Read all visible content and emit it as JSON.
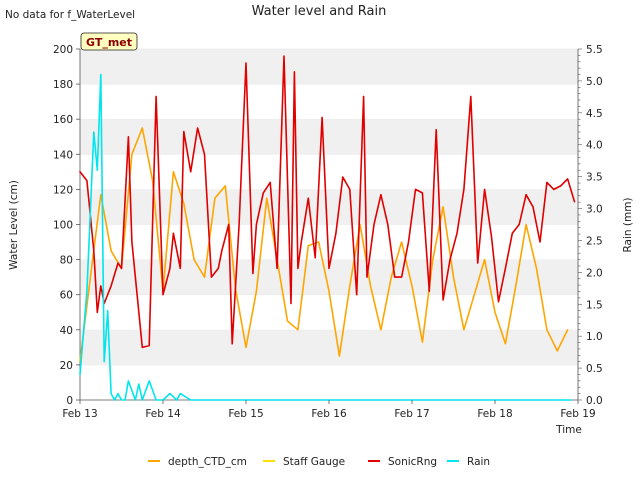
{
  "page": {
    "corner_note": "No data for f_WaterLevel",
    "tag_label": "GT_met"
  },
  "chart_data": {
    "type": "line",
    "title": "Water level and Rain",
    "xlabel": "Time",
    "ylabel": "Water Level (cm)",
    "y2label": "Rain (mm)",
    "x_ticks": [
      "Feb 13",
      "Feb 14",
      "Feb 15",
      "Feb 16",
      "Feb 17",
      "Feb 18",
      "Feb 19"
    ],
    "ylim": [
      0,
      200
    ],
    "y_ticks": [
      0,
      20,
      40,
      60,
      80,
      100,
      120,
      140,
      160,
      180,
      200
    ],
    "y2lim": [
      0,
      5.5
    ],
    "y2_ticks": [
      "0.0",
      "0.5",
      "1.0",
      "1.5",
      "2.0",
      "2.5",
      "3.0",
      "3.5",
      "4.0",
      "4.5",
      "5.0",
      "5.5"
    ],
    "grid": "horizontal bands",
    "legend_position": "bottom",
    "series": [
      {
        "name": "depth_CTD_cm",
        "color": "#FFA500",
        "axis": "left",
        "x": [
          "02-13 00:00",
          "02-13 03:00",
          "02-13 06:00",
          "02-13 09:00",
          "02-13 12:00",
          "02-13 15:00",
          "02-13 18:00",
          "02-13 21:00",
          "02-14 00:00",
          "02-14 03:00",
          "02-14 06:00",
          "02-14 09:00",
          "02-14 12:00",
          "02-14 15:00",
          "02-14 18:00",
          "02-14 21:00",
          "02-15 00:00",
          "02-15 03:00",
          "02-15 06:00",
          "02-15 09:00",
          "02-15 12:00",
          "02-15 15:00",
          "02-15 18:00",
          "02-15 21:00",
          "02-16 00:00",
          "02-16 03:00",
          "02-16 06:00",
          "02-16 09:00",
          "02-16 12:00",
          "02-16 15:00",
          "02-16 18:00",
          "02-16 21:00",
          "02-17 00:00",
          "02-17 03:00",
          "02-17 06:00",
          "02-17 09:00",
          "02-17 12:00",
          "02-17 15:00",
          "02-17 18:00",
          "02-17 21:00",
          "02-18 00:00",
          "02-18 03:00",
          "02-18 06:00",
          "02-18 09:00",
          "02-18 12:00",
          "02-18 15:00",
          "02-18 18:00",
          "02-18 21:00"
        ],
        "values": [
          22,
          70,
          117,
          85,
          75,
          140,
          155,
          125,
          62,
          130,
          112,
          80,
          70,
          115,
          122,
          63,
          30,
          62,
          115,
          80,
          45,
          40,
          88,
          90,
          62,
          25,
          65,
          100,
          65,
          40,
          70,
          90,
          65,
          33,
          80,
          110,
          70,
          40,
          60,
          80,
          50,
          32,
          65,
          100,
          75,
          40,
          28,
          40
        ]
      },
      {
        "name": "Staff Gauge",
        "color": "#FFE000",
        "axis": "left",
        "x": [],
        "values": []
      },
      {
        "name": "SonicRng",
        "color": "#E00000",
        "axis": "left",
        "x": [
          "02-13 00:00",
          "02-13 02:00",
          "02-13 04:00",
          "02-13 05:00",
          "02-13 06:00",
          "02-13 07:00",
          "02-13 09:00",
          "02-13 11:00",
          "02-13 12:00",
          "02-13 14:00",
          "02-13 15:00",
          "02-13 18:00",
          "02-13 20:00",
          "02-13 22:00",
          "02-14 00:00",
          "02-14 02:00",
          "02-14 03:00",
          "02-14 05:00",
          "02-14 06:00",
          "02-14 08:00",
          "02-14 10:00",
          "02-14 12:00",
          "02-14 14:00",
          "02-14 16:00",
          "02-14 17:00",
          "02-14 19:00",
          "02-14 20:00",
          "02-14 22:00",
          "02-15 00:00",
          "02-15 02:00",
          "02-15 03:00",
          "02-15 05:00",
          "02-15 07:00",
          "02-15 09:00",
          "02-15 11:00",
          "02-15 13:00",
          "02-15 14:00",
          "02-15 15:00",
          "02-15 16:00",
          "02-15 18:00",
          "02-15 20:00",
          "02-15 22:00",
          "02-16 00:00",
          "02-16 02:00",
          "02-16 04:00",
          "02-16 06:00",
          "02-16 08:00",
          "02-16 10:00",
          "02-16 11:00",
          "02-16 13:00",
          "02-16 15:00",
          "02-16 17:00",
          "02-16 19:00",
          "02-16 21:00",
          "02-16 23:00",
          "02-17 01:00",
          "02-17 03:00",
          "02-17 05:00",
          "02-17 07:00",
          "02-17 09:00",
          "02-17 11:00",
          "02-17 13:00",
          "02-17 15:00",
          "02-17 17:00",
          "02-17 19:00",
          "02-17 21:00",
          "02-17 23:00",
          "02-18 01:00",
          "02-18 03:00",
          "02-18 05:00",
          "02-18 07:00",
          "02-18 09:00",
          "02-18 11:00",
          "02-18 13:00",
          "02-18 15:00",
          "02-18 17:00",
          "02-18 19:00",
          "02-18 21:00",
          "02-18 23:00"
        ],
        "values": [
          130,
          125,
          85,
          50,
          65,
          55,
          65,
          78,
          75,
          150,
          90,
          30,
          31,
          173,
          60,
          75,
          95,
          75,
          153,
          130,
          155,
          140,
          70,
          75,
          85,
          100,
          32,
          100,
          192,
          72,
          100,
          118,
          124,
          75,
          196,
          55,
          187,
          75,
          90,
          115,
          81,
          161,
          75,
          95,
          127,
          120,
          60,
          173,
          70,
          100,
          117,
          100,
          70,
          70,
          90,
          120,
          118,
          62,
          154,
          57,
          80,
          95,
          120,
          173,
          78,
          120,
          93,
          56,
          75,
          95,
          100,
          117,
          110,
          90,
          124,
          120,
          122,
          126,
          113
        ]
      },
      {
        "name": "Rain",
        "color": "#00E5EE",
        "axis": "right",
        "x": [
          "02-13 00:00",
          "02-13 02:00",
          "02-13 04:00",
          "02-13 05:00",
          "02-13 06:00",
          "02-13 07:00",
          "02-13 08:00",
          "02-13 09:00",
          "02-13 10:00",
          "02-13 11:00",
          "02-13 12:00",
          "02-13 13:00",
          "02-13 14:00",
          "02-13 16:00",
          "02-13 17:00",
          "02-13 18:00",
          "02-13 20:00",
          "02-13 22:00",
          "02-14 00:00",
          "02-14 02:00",
          "02-14 04:00",
          "02-14 05:00",
          "02-14 08:00",
          "02-14 14:00",
          "02-14 15:00",
          "02-14 16:00",
          "02-16 00:00",
          "02-18 00:00",
          "02-18 22:00"
        ],
        "values": [
          0.4,
          1.7,
          4.2,
          3.6,
          5.1,
          0.6,
          1.4,
          0.1,
          0.0,
          0.1,
          0.0,
          0.0,
          0.3,
          0.0,
          0.25,
          0.0,
          0.3,
          0.0,
          0.0,
          0.1,
          0.0,
          0.1,
          0.0,
          0.0,
          0.0,
          0.0,
          0.0,
          0.0,
          0.0
        ]
      }
    ]
  }
}
